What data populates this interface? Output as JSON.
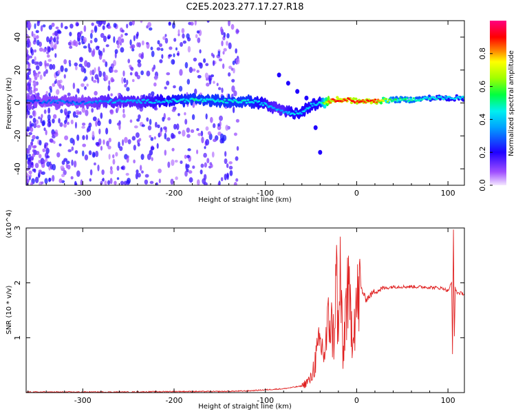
{
  "figure_title": "C2E5.2023.277.17.27.R18",
  "colors": {
    "snr_line": "#e02020",
    "spectrogram_core": "#0000ff",
    "spectrogram_halo": "#9a4dff",
    "background": "#ffffff"
  },
  "chart_data": [
    {
      "type": "heatmap",
      "title": "C2E5.2023.277.17.27.R18",
      "xlabel": "Height of straight line (km)",
      "ylabel": "Frequency (Hz)",
      "xlim": [
        -362,
        118
      ],
      "ylim": [
        -50,
        50
      ],
      "x_ticks": [
        -300,
        -200,
        -100,
        0,
        100
      ],
      "x_tick_labels": [
        "-300",
        "-200",
        "-100",
        "0",
        "100"
      ],
      "y_ticks": [
        -40,
        -20,
        0,
        20,
        40
      ],
      "y_tick_labels": [
        "-40",
        "-20",
        "0",
        "20",
        "40"
      ],
      "colorbar": {
        "label": "Normalized spectral amplitude",
        "range": [
          0,
          1
        ],
        "ticks": [
          0.0,
          0.2,
          0.4,
          0.6,
          0.8
        ],
        "tick_labels": [
          "0.0",
          "0.2",
          "0.4",
          "0.6",
          "0.8"
        ],
        "colormap": "rainbow (white-purple-blue-cyan-green-yellow-red-magenta)"
      },
      "ridge": {
        "description": "spectral peak frequency vs height",
        "x": [
          -360,
          -330,
          -300,
          -270,
          -240,
          -210,
          -180,
          -150,
          -120,
          -105,
          -90,
          -80,
          -70,
          -60,
          -50,
          -40,
          -30,
          -20,
          -10,
          0,
          20,
          40,
          60,
          80,
          100,
          118
        ],
        "y": [
          1,
          1,
          0,
          1,
          1,
          1,
          2,
          1,
          1,
          0,
          -3,
          -5,
          -6,
          -6,
          -1,
          0,
          1,
          2,
          2,
          1,
          1,
          2,
          2,
          3,
          3,
          3
        ],
        "amplitude": [
          0.25,
          0.3,
          0.3,
          0.35,
          0.35,
          0.4,
          0.45,
          0.45,
          0.45,
          0.4,
          0.35,
          0.35,
          0.4,
          0.4,
          0.4,
          0.4,
          0.85,
          0.9,
          0.9,
          0.85,
          0.9,
          0.5,
          0.5,
          0.45,
          0.4,
          0.4
        ]
      },
      "branch": {
        "description": "secondary descending feature",
        "x": [
          -85,
          -75,
          -65,
          -55,
          -45,
          -40
        ],
        "y": [
          17,
          12,
          7,
          3,
          -15,
          -30
        ]
      }
    },
    {
      "type": "line",
      "title": "",
      "xlabel": "Height of straight line (km)",
      "ylabel": "SNR (10 * v/v)",
      "y_multiplier": "(x10^4)",
      "xlim": [
        -362,
        118
      ],
      "ylim": [
        0,
        3.0
      ],
      "x_ticks": [
        -300,
        -200,
        -100,
        0,
        100
      ],
      "x_tick_labels": [
        "-300",
        "-200",
        "-100",
        "0",
        "100"
      ],
      "y_ticks": [
        1,
        2,
        3
      ],
      "y_tick_labels": [
        "1",
        "2",
        "3"
      ],
      "series": [
        {
          "name": "",
          "x": [
            -362,
            -300,
            -250,
            -200,
            -150,
            -120,
            -100,
            -80,
            -60,
            -50,
            -45,
            -40,
            -35,
            -30,
            -25,
            -22,
            -20,
            -18,
            -15,
            -12,
            -10,
            -5,
            0,
            5,
            10,
            20,
            30,
            40,
            60,
            80,
            95,
            100,
            104,
            105,
            106,
            107,
            108,
            110,
            118
          ],
          "y": [
            0.01,
            0.01,
            0.01,
            0.02,
            0.02,
            0.03,
            0.05,
            0.07,
            0.12,
            0.25,
            0.6,
            0.9,
            0.7,
            1.4,
            1.0,
            2.2,
            0.8,
            2.3,
            0.5,
            1.6,
            1.8,
            1.2,
            1.6,
            1.9,
            1.7,
            1.85,
            1.9,
            1.93,
            1.93,
            1.92,
            1.9,
            1.85,
            2.0,
            0.7,
            3.0,
            1.0,
            1.9,
            1.82,
            1.8
          ]
        }
      ]
    }
  ]
}
